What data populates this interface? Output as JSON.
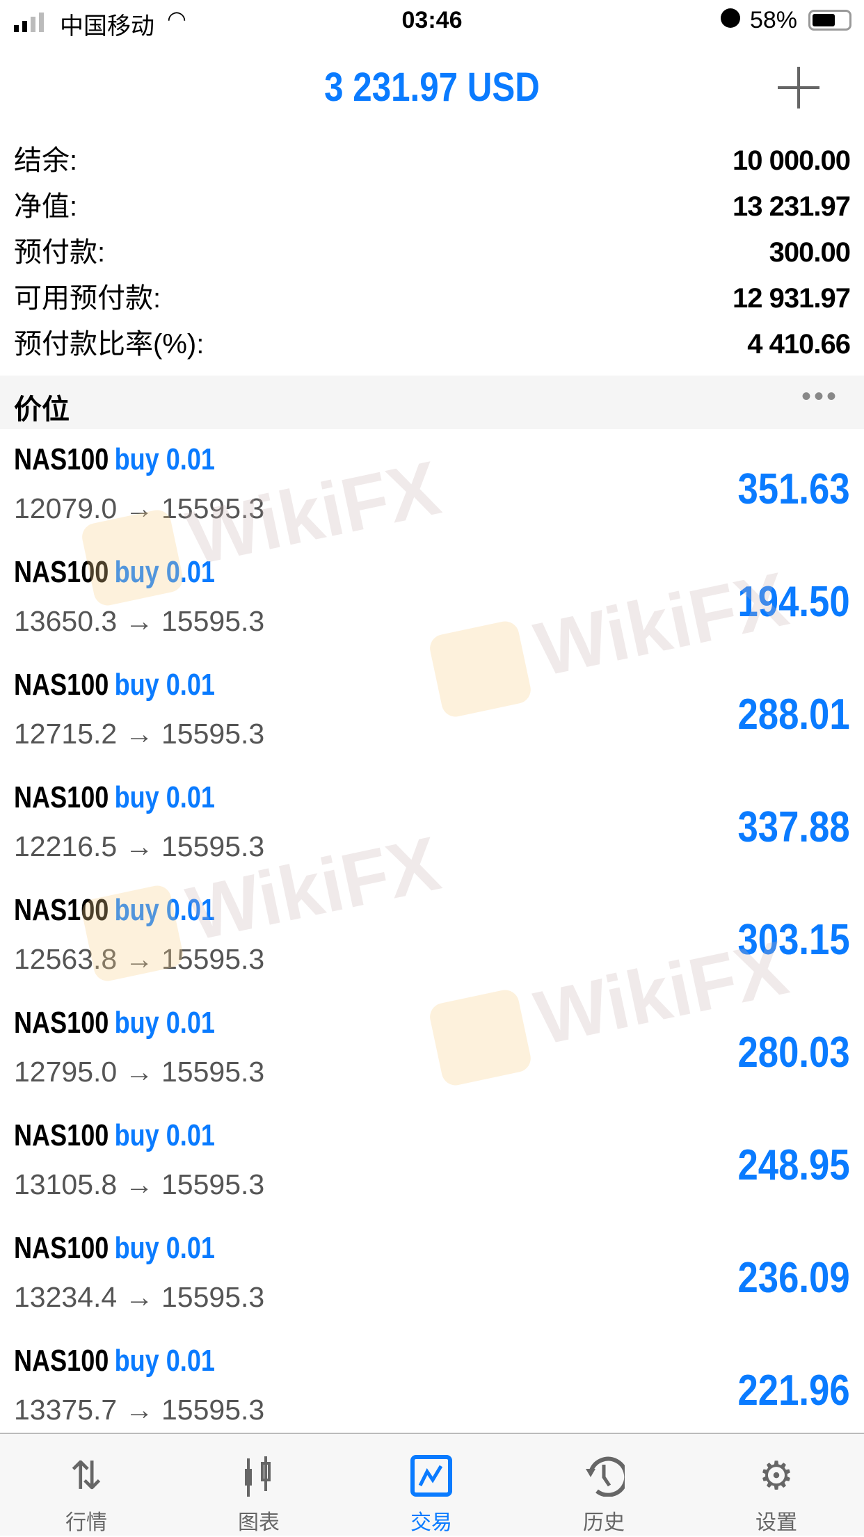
{
  "status_bar": {
    "carrier": "中国移动",
    "time": "03:46",
    "battery": "58%",
    "battery_level": 0.58
  },
  "header": {
    "title": "3 231.97 USD"
  },
  "account": [
    {
      "label": "结余:",
      "value": "10 000.00"
    },
    {
      "label": "净值:",
      "value": "13 231.97"
    },
    {
      "label": "预付款:",
      "value": "300.00"
    },
    {
      "label": "可用预付款:",
      "value": "12 931.97"
    },
    {
      "label": "预付款比率(%):",
      "value": "4 410.66"
    }
  ],
  "section": {
    "title": "价位",
    "more": "•••"
  },
  "positions": [
    {
      "symbol": "NAS100",
      "side": "buy 0.01",
      "prices": "12079.0 → 15595.3",
      "profit": "351.63"
    },
    {
      "symbol": "NAS100",
      "side": "buy 0.01",
      "prices": "13650.3 → 15595.3",
      "profit": "194.50"
    },
    {
      "symbol": "NAS100",
      "side": "buy 0.01",
      "prices": "12715.2 → 15595.3",
      "profit": "288.01"
    },
    {
      "symbol": "NAS100",
      "side": "buy 0.01",
      "prices": "12216.5 → 15595.3",
      "profit": "337.88"
    },
    {
      "symbol": "NAS100",
      "side": "buy 0.01",
      "prices": "12563.8 → 15595.3",
      "profit": "303.15"
    },
    {
      "symbol": "NAS100",
      "side": "buy 0.01",
      "prices": "12795.0 → 15595.3",
      "profit": "280.03"
    },
    {
      "symbol": "NAS100",
      "side": "buy 0.01",
      "prices": "13105.8 → 15595.3",
      "profit": "248.95"
    },
    {
      "symbol": "NAS100",
      "side": "buy 0.01",
      "prices": "13234.4 → 15595.3",
      "profit": "236.09"
    },
    {
      "symbol": "NAS100",
      "side": "buy 0.01",
      "prices": "13375.7 → 15595.3",
      "profit": "221.96"
    }
  ],
  "watermark": "WikiFX",
  "tabs": [
    {
      "label": "行情",
      "icon": "quotes-arrows-icon"
    },
    {
      "label": "图表",
      "icon": "candlestick-chart-icon"
    },
    {
      "label": "交易",
      "icon": "trade-chart-icon",
      "active": true
    },
    {
      "label": "历史",
      "icon": "history-clock-icon"
    },
    {
      "label": "设置",
      "icon": "gear-icon"
    }
  ],
  "colors": {
    "accent": "#0a7bff"
  }
}
